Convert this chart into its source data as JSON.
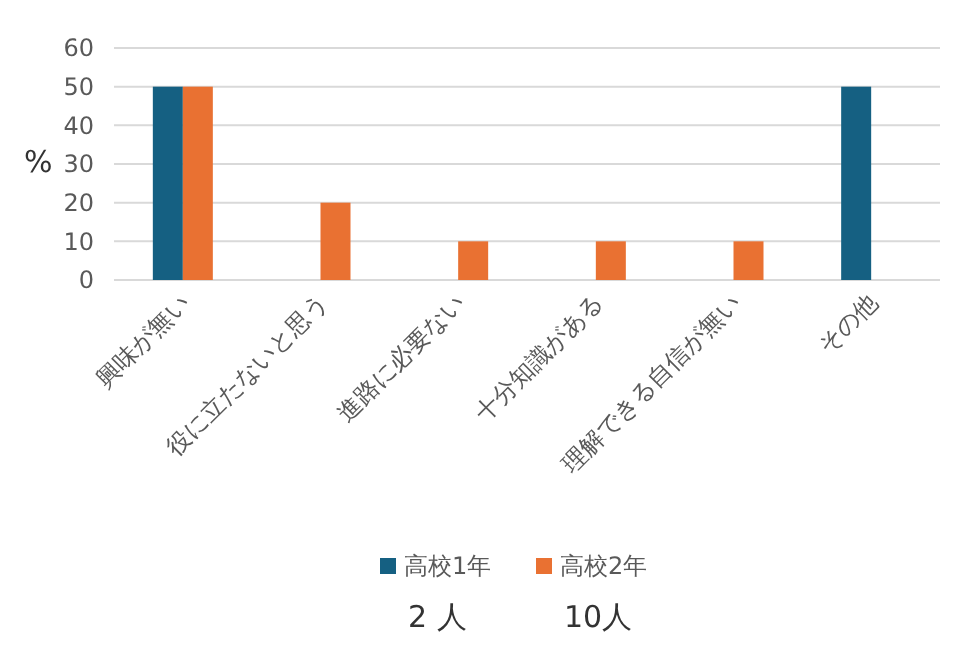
{
  "chart_data": {
    "type": "bar",
    "ylabel": "%",
    "categories": [
      "興味が無い",
      "役に立たないと思う",
      "進路に必要ない",
      "十分知識がある",
      "理解できる自信が無い",
      "その他"
    ],
    "series": [
      {
        "name": "高校1年",
        "color": "#156082",
        "values": [
          50,
          0,
          0,
          0,
          0,
          50
        ]
      },
      {
        "name": "高校2年",
        "color": "#e97132",
        "values": [
          50,
          20,
          10,
          10,
          10,
          0
        ]
      }
    ],
    "ylim": [
      0,
      60
    ],
    "yticks": [
      0,
      10,
      20,
      30,
      40,
      50,
      60
    ],
    "grid": "y",
    "legend": "bottom",
    "annotations": [
      "2 人",
      "10人"
    ]
  }
}
